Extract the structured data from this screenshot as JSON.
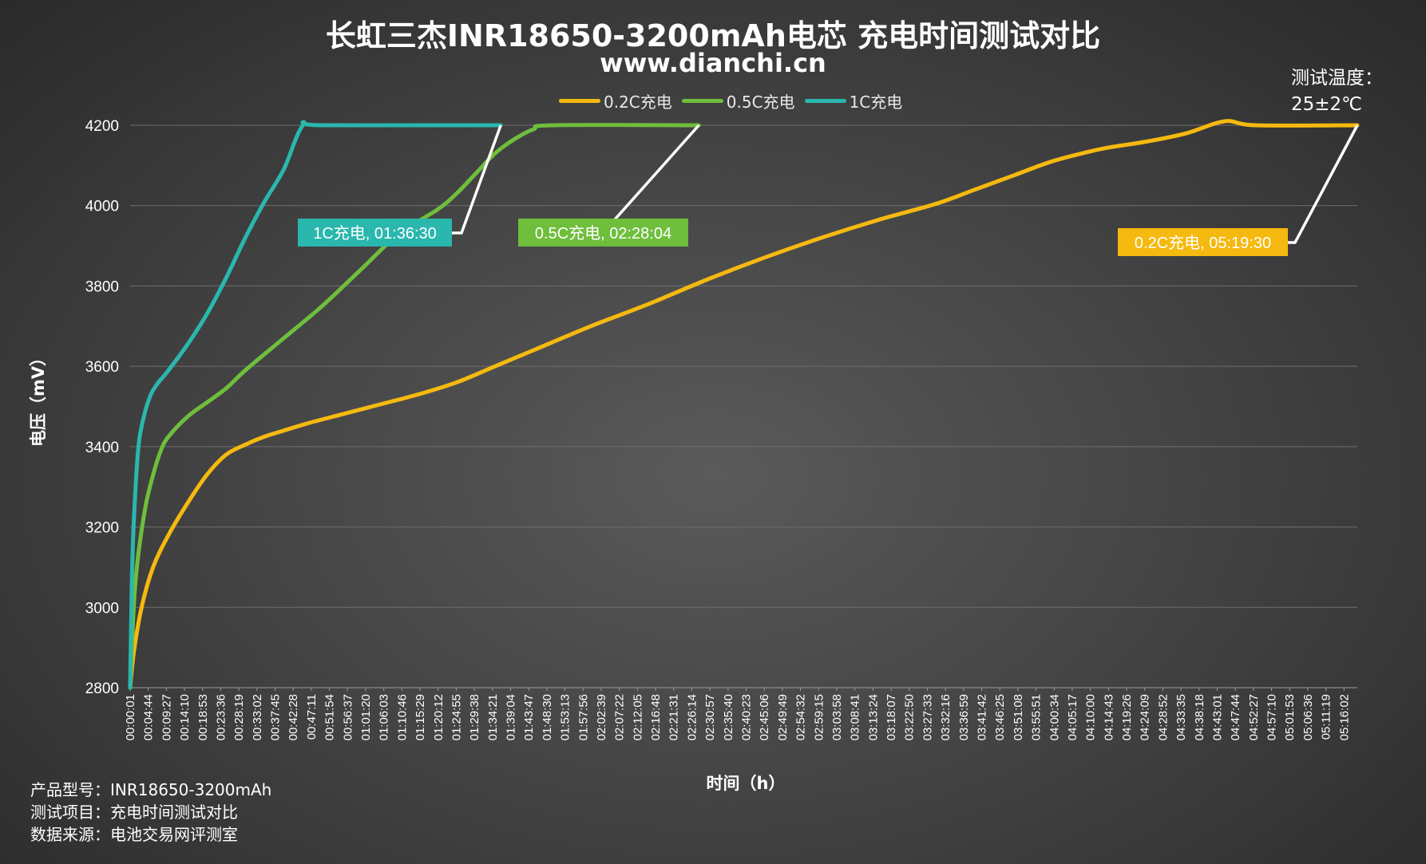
{
  "header": {
    "title": "长虹三杰INR18650-3200mAh电芯 充电时间测试对比",
    "subtitle": "www.dianchi.cn"
  },
  "temperature": {
    "line1": "测试温度：",
    "line2": "25±2℃"
  },
  "footer": {
    "line1": "产品型号：INR18650-3200mAh",
    "line2": "测试项目：充电时间测试对比",
    "line3": "数据来源：电池交易网评测室"
  },
  "colors": {
    "c02": "#f5b90f",
    "c05": "#6fbe3c",
    "c1": "#2ab7ad",
    "grid": "#707070",
    "background": "#454545"
  },
  "chart_data": {
    "type": "line",
    "xlabel": "时间（h）",
    "ylabel": "电压（mV）",
    "ylim": [
      2800,
      4200
    ],
    "yticks": [
      2800,
      3000,
      3200,
      3400,
      3600,
      3800,
      4000,
      4200
    ],
    "grid": true,
    "legend_position": "top",
    "x_ticks": [
      "00:00:01",
      "00:04:44",
      "00:09:27",
      "00:14:10",
      "00:18:53",
      "00:23:36",
      "00:28:19",
      "00:33:02",
      "00:37:45",
      "00:42:28",
      "00:47:11",
      "00:51:54",
      "00:56:37",
      "01:01:20",
      "01:06:03",
      "01:10:46",
      "01:15:29",
      "01:20:12",
      "01:24:55",
      "01:29:38",
      "01:34:21",
      "01:39:04",
      "01:43:47",
      "01:48:30",
      "01:53:13",
      "01:57:56",
      "02:02:39",
      "02:07:22",
      "02:12:05",
      "02:16:48",
      "02:21:31",
      "02:26:14",
      "02:30:57",
      "02:35:40",
      "02:40:23",
      "02:45:06",
      "02:49:49",
      "02:54:32",
      "02:59:15",
      "03:03:58",
      "03:08:41",
      "03:13:24",
      "03:18:07",
      "03:22:50",
      "03:27:33",
      "03:32:16",
      "03:36:59",
      "03:41:42",
      "03:46:25",
      "03:51:08",
      "03:55:51",
      "04:00:34",
      "04:05:17",
      "04:10:00",
      "04:14:43",
      "04:19:26",
      "04:24:09",
      "04:28:52",
      "04:33:35",
      "04:38:18",
      "04:43:01",
      "04:47:44",
      "04:52:27",
      "04:57:10",
      "05:01:53",
      "05:06:36",
      "05:11:19",
      "05:16:02"
    ],
    "series": [
      {
        "name": "0.2C充电",
        "color": "#f5b90f",
        "x": [
          "00:00:01",
          "00:01:00",
          "00:03:00",
          "00:06:00",
          "00:10:00",
          "00:15:00",
          "00:20:00",
          "00:25:00",
          "00:30:00",
          "00:35:00",
          "00:40:00",
          "00:47:00",
          "00:55:00",
          "01:05:00",
          "01:15:00",
          "01:25:00",
          "01:35:00",
          "01:45:00",
          "02:00:00",
          "02:15:00",
          "02:30:00",
          "02:45:00",
          "03:00:00",
          "03:15:00",
          "03:30:00",
          "03:40:00",
          "03:50:00",
          "04:00:00",
          "04:10:00",
          "04:15:00",
          "04:25:00",
          "04:35:00",
          "04:45:00",
          "04:53:00",
          "05:19:30"
        ],
        "values": [
          2800,
          2890,
          3000,
          3100,
          3180,
          3260,
          3330,
          3380,
          3405,
          3425,
          3440,
          3460,
          3480,
          3505,
          3530,
          3560,
          3600,
          3640,
          3700,
          3755,
          3815,
          3870,
          3920,
          3965,
          4005,
          4040,
          4075,
          4110,
          4135,
          4145,
          4160,
          4180,
          4210,
          4200,
          4200
        ]
      },
      {
        "name": "0.5C充电",
        "color": "#6fbe3c",
        "x": [
          "00:00:01",
          "00:01:00",
          "00:02:00",
          "00:04:00",
          "00:06:00",
          "00:08:00",
          "00:10:00",
          "00:15:00",
          "00:20:00",
          "00:25:00",
          "00:30:00",
          "00:40:00",
          "00:50:00",
          "01:00:00",
          "01:10:00",
          "01:20:00",
          "01:25:00",
          "01:30:00",
          "01:35:00",
          "01:40:00",
          "01:45:00",
          "01:50:00",
          "02:28:04"
        ],
        "values": [
          2800,
          3010,
          3120,
          3250,
          3330,
          3390,
          3425,
          3475,
          3510,
          3545,
          3590,
          3670,
          3750,
          3840,
          3930,
          3990,
          4030,
          4080,
          4130,
          4165,
          4190,
          4200,
          4200
        ]
      },
      {
        "name": "1C充电",
        "color": "#2ab7ad",
        "x": [
          "00:00:01",
          "00:00:30",
          "00:01:00",
          "00:02:00",
          "00:03:00",
          "00:05:00",
          "00:07:00",
          "00:10:00",
          "00:15:00",
          "00:20:00",
          "00:25:00",
          "00:30:00",
          "00:35:00",
          "00:40:00",
          "00:45:00",
          "00:50:00",
          "01:36:30"
        ],
        "values": [
          2800,
          3080,
          3220,
          3380,
          3450,
          3520,
          3555,
          3590,
          3655,
          3730,
          3820,
          3920,
          4010,
          4090,
          4200,
          4200,
          4200
        ]
      }
    ],
    "annotations": [
      {
        "series": "1C充电",
        "text": "1C充电, 01:36:30",
        "bg": "#2ab7ad"
      },
      {
        "series": "0.5C充电",
        "text": "0.5C充电, 02:28:04",
        "bg": "#6fbe3c"
      },
      {
        "series": "0.2C充电",
        "text": "0.2C充电, 05:19:30",
        "bg": "#f5b90f"
      }
    ]
  }
}
